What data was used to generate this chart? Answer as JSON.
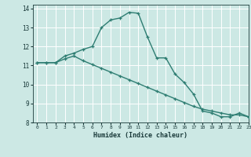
{
  "title": "",
  "xlabel": "Humidex (Indice chaleur)",
  "ylabel": "",
  "xlim": [
    -0.5,
    23
  ],
  "ylim": [
    8,
    14.2
  ],
  "yticks": [
    8,
    9,
    10,
    11,
    12,
    13,
    14
  ],
  "xticks": [
    0,
    1,
    2,
    3,
    4,
    5,
    6,
    7,
    8,
    9,
    10,
    11,
    12,
    13,
    14,
    15,
    16,
    17,
    18,
    19,
    20,
    21,
    22,
    23
  ],
  "line1_x": [
    0,
    1,
    2,
    3,
    4,
    5,
    6,
    7,
    8,
    9,
    10,
    11,
    12,
    13,
    14,
    15,
    16,
    17,
    18,
    19,
    20,
    21,
    22,
    23
  ],
  "line1_y": [
    11.15,
    11.15,
    11.15,
    11.5,
    11.65,
    11.85,
    12.0,
    13.0,
    13.4,
    13.5,
    13.8,
    13.75,
    12.5,
    11.4,
    11.4,
    10.55,
    10.1,
    9.5,
    8.6,
    8.5,
    8.3,
    8.3,
    8.5,
    8.3
  ],
  "line2_x": [
    0,
    1,
    2,
    3,
    4,
    5,
    6,
    7,
    8,
    9,
    10,
    11,
    12,
    13,
    14,
    15,
    16,
    17,
    18,
    19,
    20,
    21,
    22,
    23
  ],
  "line2_y": [
    11.15,
    11.15,
    11.15,
    11.35,
    11.5,
    11.25,
    11.05,
    10.85,
    10.65,
    10.45,
    10.25,
    10.05,
    9.85,
    9.65,
    9.45,
    9.25,
    9.05,
    8.85,
    8.7,
    8.6,
    8.5,
    8.4,
    8.4,
    8.3
  ],
  "line_color": "#2e7d72",
  "bg_color": "#cce8e4",
  "grid_color": "#ffffff",
  "font_color": "#1a3a3a",
  "marker": "+"
}
